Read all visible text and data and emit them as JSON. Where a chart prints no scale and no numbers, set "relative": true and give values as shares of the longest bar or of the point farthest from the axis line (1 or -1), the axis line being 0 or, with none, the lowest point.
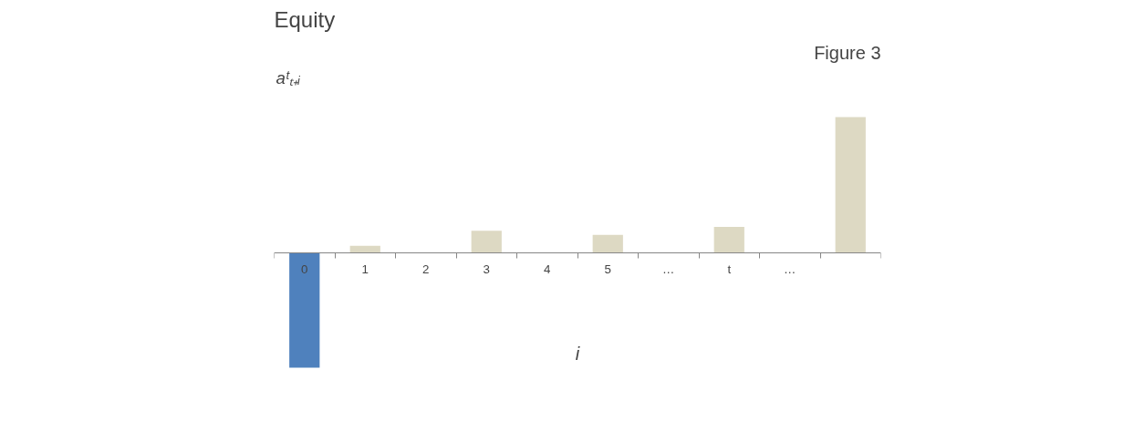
{
  "chart_data": {
    "type": "bar",
    "title": "Equity",
    "annotations": [
      "Figure 3"
    ],
    "xlabel": "i",
    "ylabel": "aᵗₜ₊ᵢ",
    "relative": true,
    "categories": [
      "0",
      "1",
      "2",
      "3",
      "4",
      "5",
      "…",
      "t",
      "…",
      null
    ],
    "values": [
      -0.85,
      0.05,
      0,
      0.16,
      0,
      0.13,
      0,
      0.19,
      0,
      1
    ],
    "colors": [
      "#4f81bd",
      "#ddd9c3",
      "#ddd9c3",
      "#ddd9c3",
      "#ddd9c3",
      "#ddd9c3",
      "#ddd9c3",
      "#ddd9c3",
      "#ddd9c3",
      "#ddd9c3"
    ],
    "grid": false
  }
}
